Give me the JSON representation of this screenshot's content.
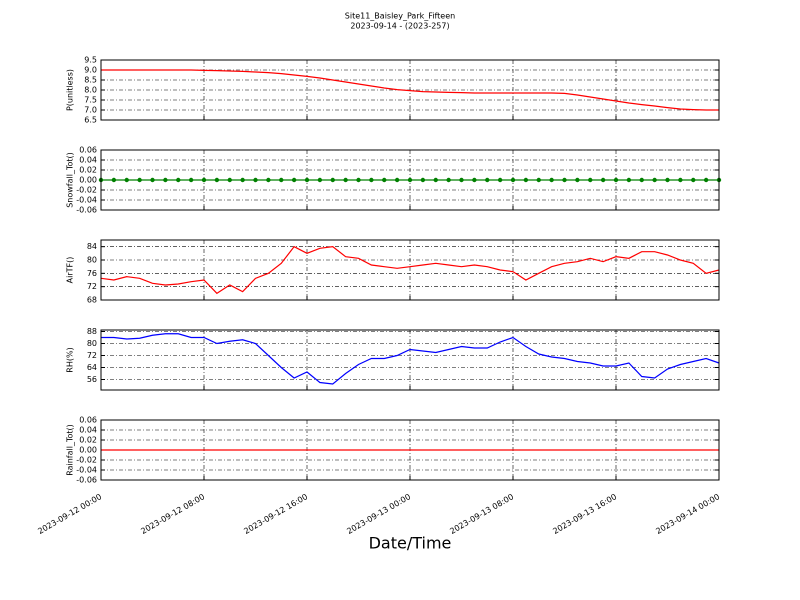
{
  "chart_data": [
    {
      "type": "line",
      "title": "Site11_Baisley_Park_Fifteen",
      "subtitle": "2023-09-14 - (2023-257)",
      "ylabel": "P(unitless)",
      "x": [
        "2023-09-12 00:00",
        "2023-09-12 01:00",
        "2023-09-12 02:00",
        "2023-09-12 03:00",
        "2023-09-12 04:00",
        "2023-09-12 05:00",
        "2023-09-12 06:00",
        "2023-09-12 07:00",
        "2023-09-12 08:00",
        "2023-09-12 09:00",
        "2023-09-12 10:00",
        "2023-09-12 11:00",
        "2023-09-12 12:00",
        "2023-09-12 13:00",
        "2023-09-12 14:00",
        "2023-09-12 15:00",
        "2023-09-12 16:00",
        "2023-09-12 17:00",
        "2023-09-12 18:00",
        "2023-09-12 19:00",
        "2023-09-12 20:00",
        "2023-09-12 21:00",
        "2023-09-12 22:00",
        "2023-09-12 23:00",
        "2023-09-13 00:00",
        "2023-09-13 01:00",
        "2023-09-13 02:00",
        "2023-09-13 03:00",
        "2023-09-13 04:00",
        "2023-09-13 05:00",
        "2023-09-13 06:00",
        "2023-09-13 07:00",
        "2023-09-13 08:00",
        "2023-09-13 09:00",
        "2023-09-13 10:00",
        "2023-09-13 11:00",
        "2023-09-13 12:00",
        "2023-09-13 13:00",
        "2023-09-13 14:00",
        "2023-09-13 15:00",
        "2023-09-13 16:00",
        "2023-09-13 17:00",
        "2023-09-13 18:00",
        "2023-09-13 19:00",
        "2023-09-13 20:00",
        "2023-09-13 21:00",
        "2023-09-13 22:00",
        "2023-09-13 23:00",
        "2023-09-14 00:00"
      ],
      "series": [
        {
          "color": "#ff0000",
          "values": [
            9.0,
            9.0,
            9.0,
            9.0,
            9.0,
            9.0,
            9.0,
            9.0,
            8.98,
            8.97,
            8.95,
            8.93,
            8.9,
            8.87,
            8.82,
            8.75,
            8.68,
            8.6,
            8.5,
            8.4,
            8.3,
            8.2,
            8.1,
            8.02,
            7.97,
            7.92,
            7.9,
            7.88,
            7.87,
            7.85,
            7.85,
            7.85,
            7.85,
            7.85,
            7.85,
            7.85,
            7.83,
            7.75,
            7.65,
            7.55,
            7.45,
            7.35,
            7.27,
            7.2,
            7.12,
            7.05,
            7.02,
            7.0,
            7.0
          ]
        }
      ],
      "xlim": [
        "2023-09-12 00:00",
        "2023-09-14 00:00"
      ],
      "xticks": [
        "2023-09-12 00:00",
        "2023-09-12 08:00",
        "2023-09-12 16:00",
        "2023-09-13 00:00",
        "2023-09-13 08:00",
        "2023-09-13 16:00",
        "2023-09-14 00:00"
      ],
      "ylim": [
        6.5,
        9.5
      ],
      "yticks": [
        6.5,
        {
          "value": 7,
          "label": "7.0"
        },
        7.5,
        {
          "value": 8,
          "label": "8.0"
        },
        8.5,
        {
          "value": 9,
          "label": "9.0"
        },
        9.5
      ],
      "grid": true
    },
    {
      "type": "line",
      "ylabel": "Snowfall_Tot()",
      "x": [
        "2023-09-12 00:00",
        "2023-09-12 01:00",
        "2023-09-12 02:00",
        "2023-09-12 03:00",
        "2023-09-12 04:00",
        "2023-09-12 05:00",
        "2023-09-12 06:00",
        "2023-09-12 07:00",
        "2023-09-12 08:00",
        "2023-09-12 09:00",
        "2023-09-12 10:00",
        "2023-09-12 11:00",
        "2023-09-12 12:00",
        "2023-09-12 13:00",
        "2023-09-12 14:00",
        "2023-09-12 15:00",
        "2023-09-12 16:00",
        "2023-09-12 17:00",
        "2023-09-12 18:00",
        "2023-09-12 19:00",
        "2023-09-12 20:00",
        "2023-09-12 21:00",
        "2023-09-12 22:00",
        "2023-09-12 23:00",
        "2023-09-13 00:00",
        "2023-09-13 01:00",
        "2023-09-13 02:00",
        "2023-09-13 03:00",
        "2023-09-13 04:00",
        "2023-09-13 05:00",
        "2023-09-13 06:00",
        "2023-09-13 07:00",
        "2023-09-13 08:00",
        "2023-09-13 09:00",
        "2023-09-13 10:00",
        "2023-09-13 11:00",
        "2023-09-13 12:00",
        "2023-09-13 13:00",
        "2023-09-13 14:00",
        "2023-09-13 15:00",
        "2023-09-13 16:00",
        "2023-09-13 17:00",
        "2023-09-13 18:00",
        "2023-09-13 19:00",
        "2023-09-13 20:00",
        "2023-09-13 21:00",
        "2023-09-13 22:00",
        "2023-09-13 23:00",
        "2023-09-14 00:00"
      ],
      "series": [
        {
          "color": "#008000",
          "markers": true,
          "values": [
            0,
            0,
            0,
            0,
            0,
            0,
            0,
            0,
            0,
            0,
            0,
            0,
            0,
            0,
            0,
            0,
            0,
            0,
            0,
            0,
            0,
            0,
            0,
            0,
            0,
            0,
            0,
            0,
            0,
            0,
            0,
            0,
            0,
            0,
            0,
            0,
            0,
            0,
            0,
            0,
            0,
            0,
            0,
            0,
            0,
            0,
            0,
            0,
            0
          ]
        }
      ],
      "xlim": [
        "2023-09-12 00:00",
        "2023-09-14 00:00"
      ],
      "xticks": [
        "2023-09-12 00:00",
        "2023-09-12 08:00",
        "2023-09-12 16:00",
        "2023-09-13 00:00",
        "2023-09-13 08:00",
        "2023-09-13 16:00",
        "2023-09-14 00:00"
      ],
      "ylim": [
        -0.06,
        0.06
      ],
      "yticks": [
        -0.06,
        -0.04,
        -0.02,
        {
          "value": 0,
          "label": "0.00"
        },
        0.02,
        0.04,
        0.06
      ],
      "grid": true
    },
    {
      "type": "line",
      "ylabel": "AirTF()",
      "x": [
        "2023-09-12 00:00",
        "2023-09-12 01:00",
        "2023-09-12 02:00",
        "2023-09-12 03:00",
        "2023-09-12 04:00",
        "2023-09-12 05:00",
        "2023-09-12 06:00",
        "2023-09-12 07:00",
        "2023-09-12 08:00",
        "2023-09-12 09:00",
        "2023-09-12 10:00",
        "2023-09-12 11:00",
        "2023-09-12 12:00",
        "2023-09-12 13:00",
        "2023-09-12 14:00",
        "2023-09-12 15:00",
        "2023-09-12 16:00",
        "2023-09-12 17:00",
        "2023-09-12 18:00",
        "2023-09-12 19:00",
        "2023-09-12 20:00",
        "2023-09-12 21:00",
        "2023-09-12 22:00",
        "2023-09-12 23:00",
        "2023-09-13 00:00",
        "2023-09-13 01:00",
        "2023-09-13 02:00",
        "2023-09-13 03:00",
        "2023-09-13 04:00",
        "2023-09-13 05:00",
        "2023-09-13 06:00",
        "2023-09-13 07:00",
        "2023-09-13 08:00",
        "2023-09-13 09:00",
        "2023-09-13 10:00",
        "2023-09-13 11:00",
        "2023-09-13 12:00",
        "2023-09-13 13:00",
        "2023-09-13 14:00",
        "2023-09-13 15:00",
        "2023-09-13 16:00",
        "2023-09-13 17:00",
        "2023-09-13 18:00",
        "2023-09-13 19:00",
        "2023-09-13 20:00",
        "2023-09-13 21:00",
        "2023-09-13 22:00",
        "2023-09-13 23:00",
        "2023-09-14 00:00"
      ],
      "series": [
        {
          "color": "#ff0000",
          "values": [
            74.5,
            74,
            75,
            74.5,
            73,
            72.5,
            72.8,
            73.5,
            74,
            70,
            72.5,
            70.5,
            74.5,
            76,
            79,
            84,
            82,
            83.5,
            84,
            81,
            80.5,
            78.5,
            78,
            77.5,
            78,
            78.5,
            79,
            78.5,
            78,
            78.5,
            78,
            77,
            76.5,
            74,
            76,
            78,
            79,
            79.5,
            80.5,
            79.5,
            81,
            80.5,
            82.5,
            82.5,
            81.5,
            80,
            79,
            76,
            77
          ]
        }
      ],
      "xlim": [
        "2023-09-12 00:00",
        "2023-09-14 00:00"
      ],
      "xticks": [
        "2023-09-12 00:00",
        "2023-09-12 08:00",
        "2023-09-12 16:00",
        "2023-09-13 00:00",
        "2023-09-13 08:00",
        "2023-09-13 16:00",
        "2023-09-14 00:00"
      ],
      "ylim": [
        68,
        86
      ],
      "yticks": [
        68,
        72,
        76,
        80,
        84
      ],
      "grid": true
    },
    {
      "type": "line",
      "ylabel": "RH(%)",
      "x": [
        "2023-09-12 00:00",
        "2023-09-12 01:00",
        "2023-09-12 02:00",
        "2023-09-12 03:00",
        "2023-09-12 04:00",
        "2023-09-12 05:00",
        "2023-09-12 06:00",
        "2023-09-12 07:00",
        "2023-09-12 08:00",
        "2023-09-12 09:00",
        "2023-09-12 10:00",
        "2023-09-12 11:00",
        "2023-09-12 12:00",
        "2023-09-12 13:00",
        "2023-09-12 14:00",
        "2023-09-12 15:00",
        "2023-09-12 16:00",
        "2023-09-12 17:00",
        "2023-09-12 18:00",
        "2023-09-12 19:00",
        "2023-09-12 20:00",
        "2023-09-12 21:00",
        "2023-09-12 22:00",
        "2023-09-12 23:00",
        "2023-09-13 00:00",
        "2023-09-13 01:00",
        "2023-09-13 02:00",
        "2023-09-13 03:00",
        "2023-09-13 04:00",
        "2023-09-13 05:00",
        "2023-09-13 06:00",
        "2023-09-13 07:00",
        "2023-09-13 08:00",
        "2023-09-13 09:00",
        "2023-09-13 10:00",
        "2023-09-13 11:00",
        "2023-09-13 12:00",
        "2023-09-13 13:00",
        "2023-09-13 14:00",
        "2023-09-13 15:00",
        "2023-09-13 16:00",
        "2023-09-13 17:00",
        "2023-09-13 18:00",
        "2023-09-13 19:00",
        "2023-09-13 20:00",
        "2023-09-13 21:00",
        "2023-09-13 22:00",
        "2023-09-13 23:00",
        "2023-09-14 00:00"
      ],
      "series": [
        {
          "color": "#0000ff",
          "values": [
            84,
            84,
            83,
            83.5,
            85.5,
            86.5,
            86.5,
            84,
            84,
            80,
            81.5,
            82.5,
            80,
            72,
            64,
            57,
            61,
            54,
            53,
            60,
            66,
            70,
            70,
            72,
            76,
            75,
            74,
            76,
            78,
            77,
            77,
            81,
            84,
            78,
            73,
            71,
            70,
            68,
            67,
            65,
            65,
            67,
            58,
            57,
            63,
            66,
            68,
            70,
            67
          ]
        }
      ],
      "xlim": [
        "2023-09-12 00:00",
        "2023-09-14 00:00"
      ],
      "xticks": [
        "2023-09-12 00:00",
        "2023-09-12 08:00",
        "2023-09-12 16:00",
        "2023-09-13 00:00",
        "2023-09-13 08:00",
        "2023-09-13 16:00",
        "2023-09-14 00:00"
      ],
      "ylim": [
        49,
        89
      ],
      "yticks": [
        56,
        64,
        72,
        80,
        88
      ],
      "grid": true
    },
    {
      "type": "line",
      "ylabel": "Rainfall_Tot()",
      "xlabel": "Date/Time",
      "x": [
        "2023-09-12 00:00",
        "2023-09-12 01:00",
        "2023-09-12 02:00",
        "2023-09-12 03:00",
        "2023-09-12 04:00",
        "2023-09-12 05:00",
        "2023-09-12 06:00",
        "2023-09-12 07:00",
        "2023-09-12 08:00",
        "2023-09-12 09:00",
        "2023-09-12 10:00",
        "2023-09-12 11:00",
        "2023-09-12 12:00",
        "2023-09-12 13:00",
        "2023-09-12 14:00",
        "2023-09-12 15:00",
        "2023-09-12 16:00",
        "2023-09-12 17:00",
        "2023-09-12 18:00",
        "2023-09-12 19:00",
        "2023-09-12 20:00",
        "2023-09-12 21:00",
        "2023-09-12 22:00",
        "2023-09-12 23:00",
        "2023-09-13 00:00",
        "2023-09-13 01:00",
        "2023-09-13 02:00",
        "2023-09-13 03:00",
        "2023-09-13 04:00",
        "2023-09-13 05:00",
        "2023-09-13 06:00",
        "2023-09-13 07:00",
        "2023-09-13 08:00",
        "2023-09-13 09:00",
        "2023-09-13 10:00",
        "2023-09-13 11:00",
        "2023-09-13 12:00",
        "2023-09-13 13:00",
        "2023-09-13 14:00",
        "2023-09-13 15:00",
        "2023-09-13 16:00",
        "2023-09-13 17:00",
        "2023-09-13 18:00",
        "2023-09-13 19:00",
        "2023-09-13 20:00",
        "2023-09-13 21:00",
        "2023-09-13 22:00",
        "2023-09-13 23:00",
        "2023-09-14 00:00"
      ],
      "series": [
        {
          "color": "#ff0000",
          "values": [
            0,
            0,
            0,
            0,
            0,
            0,
            0,
            0,
            0,
            0,
            0,
            0,
            0,
            0,
            0,
            0,
            0,
            0,
            0,
            0,
            0,
            0,
            0,
            0,
            0,
            0,
            0,
            0,
            0,
            0,
            0,
            0,
            0,
            0,
            0,
            0,
            0,
            0,
            0,
            0,
            0,
            0,
            0,
            0,
            0,
            0,
            0,
            0,
            0
          ]
        }
      ],
      "xlim": [
        "2023-09-12 00:00",
        "2023-09-14 00:00"
      ],
      "xticks": [
        "2023-09-12 00:00",
        "2023-09-12 08:00",
        "2023-09-12 16:00",
        "2023-09-13 00:00",
        "2023-09-13 08:00",
        "2023-09-13 16:00",
        "2023-09-14 00:00"
      ],
      "ylim": [
        -0.06,
        0.06
      ],
      "yticks": [
        -0.06,
        -0.04,
        -0.02,
        {
          "value": 0,
          "label": "0.00"
        },
        0.02,
        0.04,
        0.06
      ],
      "grid": true
    }
  ]
}
